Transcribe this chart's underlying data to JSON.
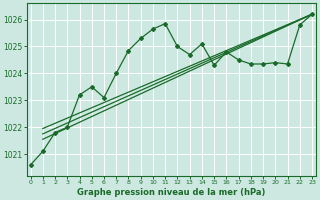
{
  "title": "Graphe pression niveau de la mer (hPa)",
  "bg_color": "#cce8e0",
  "plot_bg_color": "#cce8e0",
  "grid_color": "#ffffff",
  "line_color": "#1a6b2a",
  "x_ticks": [
    0,
    1,
    2,
    3,
    4,
    5,
    6,
    7,
    8,
    9,
    10,
    11,
    12,
    13,
    14,
    15,
    16,
    17,
    18,
    19,
    20,
    21,
    22,
    23
  ],
  "y_ticks": [
    1021,
    1022,
    1023,
    1024,
    1025,
    1026
  ],
  "ylim": [
    1020.2,
    1026.6
  ],
  "xlim": [
    -0.3,
    23.3
  ],
  "pressure_data": [
    1020.6,
    1021.1,
    1021.8,
    1022.0,
    1023.2,
    1023.5,
    1023.1,
    1024.0,
    1024.85,
    1025.3,
    1025.65,
    1025.85,
    1025.0,
    1024.7,
    1025.1,
    1024.3,
    1024.8,
    1024.5,
    1024.35,
    1024.35,
    1024.4,
    1024.35,
    1025.8,
    1026.2
  ],
  "trend_lines": [
    {
      "x0": 1.0,
      "y0": 1021.55,
      "x1": 23,
      "y1": 1026.2
    },
    {
      "x0": 1.0,
      "y0": 1021.75,
      "x1": 23,
      "y1": 1026.2
    },
    {
      "x0": 1.0,
      "y0": 1021.95,
      "x1": 23,
      "y1": 1026.2
    }
  ]
}
